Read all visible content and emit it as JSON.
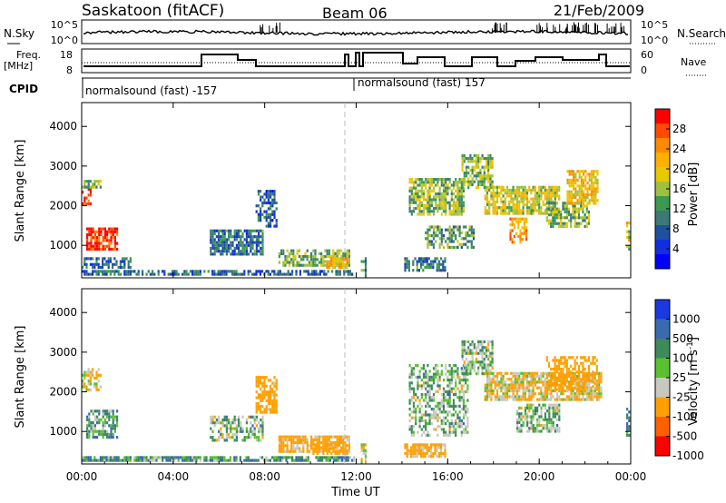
{
  "header": {
    "station": "Saskatoon (fitACF)",
    "beam": "Beam 06",
    "date": "21/Feb/2009"
  },
  "status_panel": {
    "nsky_label": "N.Sky",
    "nsky_ticks": [
      "10^5",
      "10^0"
    ],
    "nsearch_label": "N.Search",
    "nsearch_ticks": [
      "10^5",
      "10^0"
    ],
    "freq_label": "Freq.",
    "freq_unit": "[MHz]",
    "freq_ticks": [
      "18",
      "8"
    ],
    "nave_label": "Nave",
    "nave_ticks": [
      "60",
      "0"
    ],
    "cpid_label": "CPID",
    "cpid_segments": [
      {
        "label": "normalsound (fast) -157",
        "start_hour": 0
      },
      {
        "label": "normalsound (fast) 157",
        "start_hour": 12.1
      }
    ]
  },
  "power_colorbar": {
    "label": "Power [dB]",
    "ticks": [
      "28",
      "24",
      "20",
      "16",
      "12",
      "8",
      "4"
    ],
    "colors": [
      "#ff0000",
      "#ff4a00",
      "#ff8a00",
      "#ffb000",
      "#e8c800",
      "#a0c040",
      "#3c9a50",
      "#3c7878",
      "#2050a0",
      "#1030e0",
      "#0000ff"
    ]
  },
  "velocity_colorbar": {
    "label": "Velocity [m s",
    "label_sup": "-1",
    "label_close": "]",
    "ticks": [
      "1000",
      "500",
      "100",
      "25",
      "-25",
      "-100",
      "-500",
      "-1000"
    ],
    "colors": [
      "#1a3ae0",
      "#3a6ab0",
      "#3e8a5a",
      "#5ac030",
      "#c8c8c0",
      "#ffa000",
      "#ff6000",
      "#ff0000"
    ]
  },
  "axes": {
    "ylabel": "Slant Range [km]",
    "yticks": [
      "1000",
      "2000",
      "3000",
      "4000"
    ],
    "xticks": [
      "00:00",
      "04:00",
      "08:00",
      "12:00",
      "16:00",
      "20:00",
      "00:00"
    ],
    "xlabel": "Time UT"
  },
  "chart_data": [
    {
      "type": "heatmap",
      "title": "Power",
      "xlabel": "Time UT",
      "ylabel": "Slant Range [km]",
      "x_unit": "hour UT",
      "xlim": [
        0,
        24
      ],
      "ylim": [
        180,
        4600
      ],
      "colorbar": "Power [dB]",
      "value_range": [
        0,
        30
      ],
      "regions": [
        {
          "t0": 0.0,
          "t1": 0.5,
          "r0": 1950,
          "r1": 2450,
          "value": 27
        },
        {
          "t0": 0.0,
          "t1": 0.9,
          "r0": 2400,
          "r1": 2650,
          "value": 14
        },
        {
          "t0": 0.2,
          "t1": 1.6,
          "r0": 850,
          "r1": 1450,
          "value": 28
        },
        {
          "t0": 0.0,
          "t1": 2.2,
          "r0": 400,
          "r1": 700,
          "value": 8
        },
        {
          "t0": 0.0,
          "t1": 12.0,
          "r0": 180,
          "r1": 380,
          "value": 8
        },
        {
          "t0": 5.6,
          "t1": 8.0,
          "r0": 700,
          "r1": 1400,
          "value": 9
        },
        {
          "t0": 7.6,
          "t1": 8.6,
          "r0": 1400,
          "r1": 2400,
          "value": 7
        },
        {
          "t0": 8.6,
          "t1": 11.8,
          "r0": 400,
          "r1": 900,
          "value": 14
        },
        {
          "t0": 10.6,
          "t1": 11.7,
          "r0": 400,
          "r1": 700,
          "value": 20
        },
        {
          "t0": 12.2,
          "t1": 12.5,
          "r0": 180,
          "r1": 700,
          "value": 9
        },
        {
          "t0": 14.1,
          "t1": 16.0,
          "r0": 300,
          "r1": 700,
          "value": 9
        },
        {
          "t0": 14.3,
          "t1": 16.8,
          "r0": 1700,
          "r1": 2700,
          "value": 14
        },
        {
          "t0": 15.0,
          "t1": 17.2,
          "r0": 900,
          "r1": 1500,
          "value": 12
        },
        {
          "t0": 16.6,
          "t1": 18.0,
          "r0": 2400,
          "r1": 3300,
          "value": 14
        },
        {
          "t0": 17.6,
          "t1": 21.0,
          "r0": 1700,
          "r1": 2500,
          "value": 17
        },
        {
          "t0": 18.7,
          "t1": 19.5,
          "r0": 1000,
          "r1": 1700,
          "value": 22
        },
        {
          "t0": 20.3,
          "t1": 22.3,
          "r0": 1400,
          "r1": 2100,
          "value": 14
        },
        {
          "t0": 21.2,
          "t1": 22.6,
          "r0": 2000,
          "r1": 2900,
          "value": 19
        },
        {
          "t0": 23.8,
          "t1": 24.0,
          "r0": 800,
          "r1": 1600,
          "value": 18
        }
      ]
    },
    {
      "type": "heatmap",
      "title": "Velocity",
      "xlabel": "Time UT",
      "ylabel": "Slant Range [km]",
      "x_unit": "hour UT",
      "xlim": [
        0,
        24
      ],
      "ylim": [
        180,
        4600
      ],
      "colorbar": "Velocity [m s^-1]",
      "value_range": [
        -1000,
        1000
      ],
      "regions": [
        {
          "t0": 0.0,
          "t1": 0.9,
          "r0": 1950,
          "r1": 2600,
          "value": -100
        },
        {
          "t0": 0.2,
          "t1": 1.6,
          "r0": 800,
          "r1": 1550,
          "value": 50
        },
        {
          "t0": 0.0,
          "t1": 12.0,
          "r0": 180,
          "r1": 380,
          "value": 60
        },
        {
          "t0": 5.6,
          "t1": 8.0,
          "r0": 700,
          "r1": 1400,
          "value": 0
        },
        {
          "t0": 7.6,
          "t1": 8.6,
          "r0": 1400,
          "r1": 2400,
          "value": -200
        },
        {
          "t0": 8.6,
          "t1": 11.8,
          "r0": 400,
          "r1": 900,
          "value": -150
        },
        {
          "t0": 10.0,
          "t1": 11.7,
          "r0": 400,
          "r1": 700,
          "value": -300
        },
        {
          "t0": 12.2,
          "t1": 12.5,
          "r0": 180,
          "r1": 700,
          "value": -100
        },
        {
          "t0": 14.1,
          "t1": 16.0,
          "r0": 300,
          "r1": 700,
          "value": -150
        },
        {
          "t0": 14.3,
          "t1": 17.0,
          "r0": 800,
          "r1": 2700,
          "value": 0
        },
        {
          "t0": 16.6,
          "t1": 18.0,
          "r0": 2400,
          "r1": 3300,
          "value": 0
        },
        {
          "t0": 17.6,
          "t1": 22.8,
          "r0": 1700,
          "r1": 2500,
          "value": -100
        },
        {
          "t0": 20.3,
          "t1": 22.6,
          "r0": 2000,
          "r1": 2900,
          "value": -300
        },
        {
          "t0": 19.0,
          "t1": 21.0,
          "r0": 900,
          "r1": 1700,
          "value": 0
        },
        {
          "t0": 23.8,
          "t1": 24.0,
          "r0": 800,
          "r1": 1600,
          "value": 100
        }
      ]
    }
  ]
}
